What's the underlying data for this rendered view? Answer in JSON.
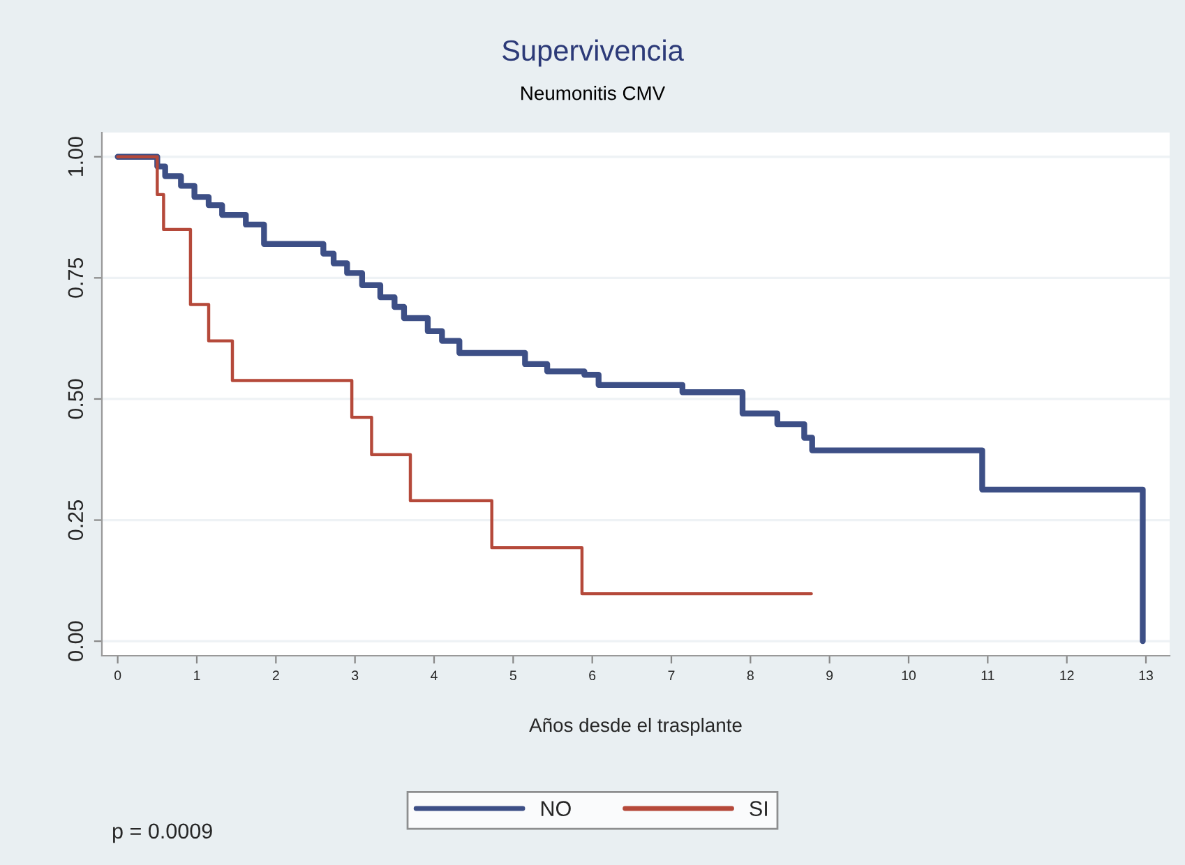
{
  "chart_data": {
    "type": "step",
    "title": "Supervivencia",
    "subtitle": "Neumonitis CMV",
    "xlabel": "Años desde el trasplante",
    "xlim": [
      -0.2,
      13.3
    ],
    "xticks": [
      0,
      1,
      2,
      3,
      4,
      5,
      6,
      7,
      8,
      9,
      10,
      11,
      12,
      13
    ],
    "ylim": [
      -0.03,
      1.05
    ],
    "yticks": [
      {
        "value": 0,
        "label": "0.00"
      },
      {
        "value": 0.25,
        "label": "0.25"
      },
      {
        "value": 0.5,
        "label": "0.50"
      },
      {
        "value": 0.75,
        "label": "0.75"
      },
      {
        "value": 1,
        "label": "1.00"
      }
    ],
    "grid": "y",
    "legend": "bottom",
    "annotations": [
      "p = 0.0009"
    ],
    "series": [
      {
        "name": "NO",
        "color": "#3d4f86",
        "x": [
          0,
          0.5,
          0.6,
          0.8,
          0.97,
          1.15,
          1.32,
          1.62,
          1.85,
          2.43,
          2.6,
          2.73,
          2.9,
          3.09,
          3.32,
          3.5,
          3.62,
          3.92,
          4.1,
          4.32,
          4.97,
          5.15,
          5.43,
          5.9,
          6.08,
          7.14,
          7.9,
          8.34,
          8.68,
          8.78,
          10.93,
          12.96
        ],
        "values": [
          1,
          0.98,
          0.96,
          0.94,
          0.917,
          0.9,
          0.88,
          0.86,
          0.82,
          0.82,
          0.8,
          0.78,
          0.76,
          0.735,
          0.71,
          0.69,
          0.667,
          0.64,
          0.62,
          0.595,
          0.595,
          0.572,
          0.557,
          0.55,
          0.529,
          0.514,
          0.47,
          0.448,
          0.42,
          0.394,
          0.313,
          0
        ]
      },
      {
        "name": "SI",
        "color": "#b5493a",
        "x": [
          0,
          0.5,
          0.58,
          0.92,
          1.15,
          1.45,
          2.96,
          3.21,
          3.7,
          4.73,
          5.87,
          8.77
        ],
        "values": [
          1,
          0.922,
          0.85,
          0.695,
          0.62,
          0.538,
          0.462,
          0.385,
          0.29,
          0.193,
          0.098,
          0.098
        ]
      }
    ]
  }
}
